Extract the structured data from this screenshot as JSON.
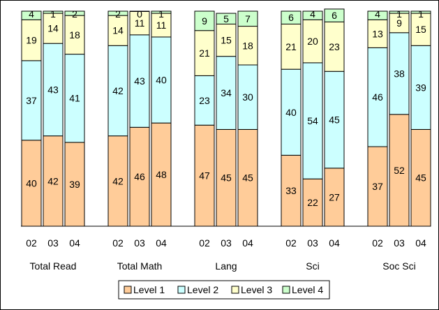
{
  "chart_data": {
    "type": "bar",
    "stacked": true,
    "percent_stacked": true,
    "groups": [
      {
        "name": "Total Read",
        "years": [
          "02",
          "03",
          "04"
        ]
      },
      {
        "name": "Total Math",
        "years": [
          "02",
          "03",
          "04"
        ]
      },
      {
        "name": "Lang",
        "years": [
          "02",
          "03",
          "04"
        ]
      },
      {
        "name": "Sci",
        "years": [
          "02",
          "03",
          "04"
        ]
      },
      {
        "name": "Soc Sci",
        "years": [
          "02",
          "03",
          "04"
        ]
      }
    ],
    "series": [
      {
        "name": "Level 1",
        "color": "#FFCC99",
        "values": [
          [
            40,
            42,
            39
          ],
          [
            42,
            46,
            48
          ],
          [
            47,
            45,
            45
          ],
          [
            33,
            22,
            27
          ],
          [
            37,
            52,
            45
          ]
        ]
      },
      {
        "name": "Level 2",
        "color": "#CCFFFF",
        "values": [
          [
            37,
            43,
            41
          ],
          [
            42,
            43,
            40
          ],
          [
            23,
            34,
            30
          ],
          [
            40,
            54,
            45
          ],
          [
            46,
            38,
            39
          ]
        ]
      },
      {
        "name": "Level 3",
        "color": "#FFFFCC",
        "values": [
          [
            19,
            14,
            18
          ],
          [
            14,
            11,
            11
          ],
          [
            21,
            15,
            18
          ],
          [
            21,
            20,
            23
          ],
          [
            13,
            9,
            15
          ]
        ]
      },
      {
        "name": "Level 4",
        "color": "#CCFFCC",
        "values": [
          [
            4,
            1,
            2
          ],
          [
            2,
            0,
            1
          ],
          [
            9,
            5,
            7
          ],
          [
            6,
            4,
            6
          ],
          [
            4,
            1,
            1
          ]
        ]
      }
    ],
    "ylim": [
      0,
      100
    ],
    "legend_position": "bottom",
    "grid": false
  }
}
